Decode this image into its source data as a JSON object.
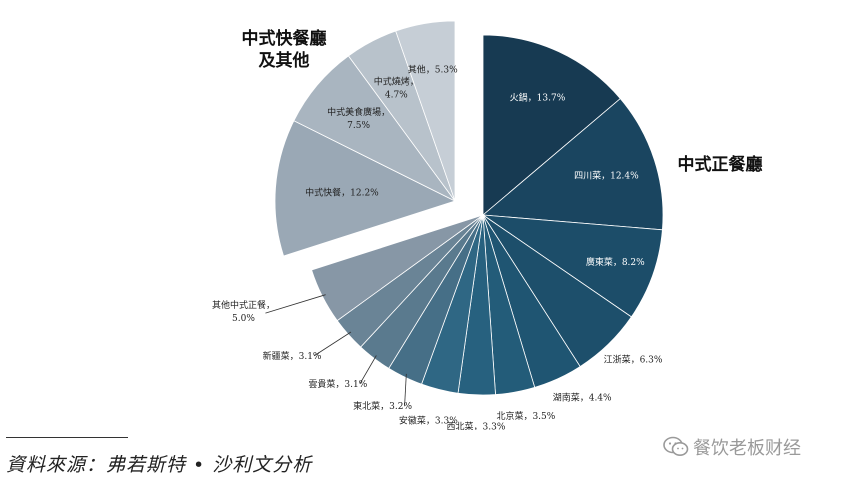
{
  "chart_data": {
    "type": "pie",
    "slices": [
      {
        "label": "火鍋，13.7%",
        "value": 13.7,
        "color": "#173a52",
        "text_color": "#ffffff",
        "group": "main"
      },
      {
        "label": "四川菜，12.4%",
        "value": 12.4,
        "color": "#1a4560",
        "text_color": "#ffffff",
        "group": "main"
      },
      {
        "label": "廣東菜，8.2%",
        "value": 8.2,
        "color": "#1c4d69",
        "text_color": "#ffffff",
        "group": "main"
      },
      {
        "label": "江浙菜，6.3%",
        "value": 6.3,
        "color": "#1d4f6b",
        "text_color": "#222222",
        "group": "main"
      },
      {
        "label": "湖南菜，4.4%",
        "value": 4.4,
        "color": "#1f5572",
        "text_color": "#222222",
        "group": "main"
      },
      {
        "label": "北京菜，3.5%",
        "value": 3.5,
        "color": "#235c79",
        "text_color": "#222222",
        "group": "main"
      },
      {
        "label": "西北菜，3.3%",
        "value": 3.3,
        "color": "#27617f",
        "text_color": "#222222",
        "group": "main"
      },
      {
        "label": "安徽菜，3.3%",
        "value": 3.3,
        "color": "#2f6784",
        "text_color": "#222222",
        "group": "main"
      },
      {
        "label": "東北菜，3.2%",
        "value": 3.2,
        "color": "#466f87",
        "text_color": "#222222",
        "group": "main"
      },
      {
        "label": "雲貴菜，3.1%",
        "value": 3.1,
        "color": "#5a7a8e",
        "text_color": "#222222",
        "group": "main"
      },
      {
        "label": "新疆菜，3.1%",
        "value": 3.1,
        "color": "#6a8496",
        "text_color": "#222222",
        "group": "main"
      },
      {
        "label": "其他中式正餐，5.0%",
        "value": 5.0,
        "color": "#8797a6",
        "text_color": "#222222",
        "group": "main"
      },
      {
        "label": "中式快餐，12.2%",
        "value": 12.2,
        "color": "#9aa8b5",
        "text_color": "#222222",
        "group": "fast"
      },
      {
        "label": "中式美食廣場，7.5%",
        "value": 7.5,
        "color": "#a9b5c0",
        "text_color": "#222222",
        "group": "fast"
      },
      {
        "label": "中式燒烤，4.7%",
        "value": 4.7,
        "color": "#b8c2cb",
        "text_color": "#222222",
        "group": "fast"
      },
      {
        "label": "其他，5.3%",
        "value": 5.3,
        "color": "#c6ced6",
        "text_color": "#222222",
        "group": "fast"
      }
    ],
    "groups": [
      {
        "name": "中式正餐廳",
        "lines": [
          "中式正餐廳"
        ]
      },
      {
        "name": "中式快餐廳及其他",
        "lines": [
          "中式快餐廳",
          "及其他"
        ]
      }
    ],
    "legend": "none"
  },
  "footer": {
    "source": "資料來源：弗若斯特 • 沙利文分析",
    "watermark": "餐饮老板财经",
    "watermark_icon": "wechat-icon"
  }
}
